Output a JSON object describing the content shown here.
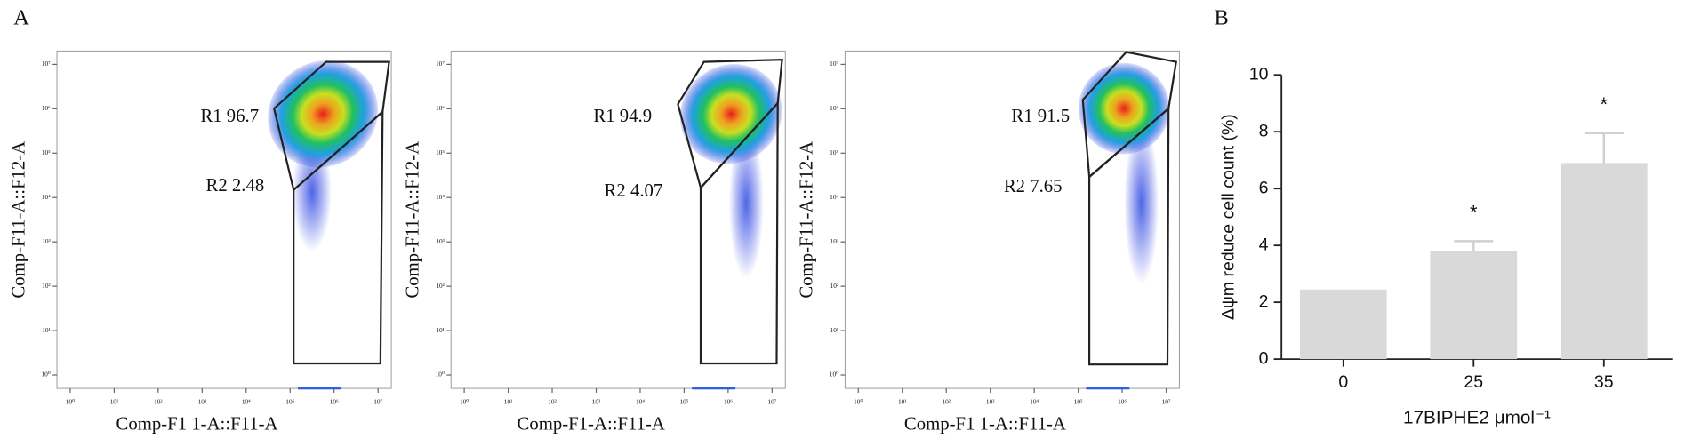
{
  "panel_labels": [
    "A",
    "B"
  ],
  "chart_data": [
    {
      "type": "density",
      "xlabel": "Comp-F1 1-A::F11-A",
      "ylabel": "Comp-F11-A::F12-A",
      "log_scale": true,
      "xlim": [
        0.5,
        20000000
      ],
      "ylim": [
        0.5,
        20000000
      ],
      "xticks": [
        {
          "value": 1,
          "label": "10⁰"
        },
        {
          "value": 10,
          "label": "10¹"
        },
        {
          "value": 100,
          "label": "10²"
        },
        {
          "value": 1000,
          "label": "10³"
        },
        {
          "value": 10000,
          "label": "10⁴"
        },
        {
          "value": 100000,
          "label": "10⁵"
        },
        {
          "value": 1000000,
          "label": "10⁶"
        },
        {
          "value": 10000000,
          "label": "10⁷"
        }
      ],
      "yticks": [
        {
          "value": 1,
          "label": "10⁰"
        },
        {
          "value": 10,
          "label": "10¹"
        },
        {
          "value": 100,
          "label": "10²"
        },
        {
          "value": 1000,
          "label": "10³"
        },
        {
          "value": 10000,
          "label": "10⁴"
        },
        {
          "value": 100000,
          "label": "10⁵"
        },
        {
          "value": 1000000,
          "label": "10⁶"
        },
        {
          "value": 10000000,
          "label": "10⁷"
        }
      ],
      "gates": [
        {
          "name": "R1",
          "value": 96.7
        },
        {
          "name": "R2",
          "value": 2.48
        }
      ]
    },
    {
      "type": "density",
      "xlabel": "Comp-F1-A::F11-A",
      "ylabel": "Comp-F11-A::F12-A",
      "log_scale": true,
      "xlim": [
        0.5,
        20000000
      ],
      "ylim": [
        0.5,
        20000000
      ],
      "xticks": [
        {
          "value": 1,
          "label": "10⁰"
        },
        {
          "value": 10,
          "label": "10¹"
        },
        {
          "value": 100,
          "label": "10²"
        },
        {
          "value": 1000,
          "label": "10³"
        },
        {
          "value": 10000,
          "label": "10⁴"
        },
        {
          "value": 100000,
          "label": "10⁵"
        },
        {
          "value": 1000000,
          "label": "10⁶"
        },
        {
          "value": 10000000,
          "label": "10⁷"
        }
      ],
      "yticks": [
        {
          "value": 1,
          "label": "10⁰"
        },
        {
          "value": 10,
          "label": "10¹"
        },
        {
          "value": 100,
          "label": "10²"
        },
        {
          "value": 1000,
          "label": "10³"
        },
        {
          "value": 10000,
          "label": "10⁴"
        },
        {
          "value": 100000,
          "label": "10⁵"
        },
        {
          "value": 1000000,
          "label": "10⁶"
        },
        {
          "value": 10000000,
          "label": "10⁷"
        }
      ],
      "gates": [
        {
          "name": "R1",
          "value": 94.9
        },
        {
          "name": "R2",
          "value": 4.07
        }
      ]
    },
    {
      "type": "density",
      "xlabel": "Comp-F1 1-A::F11-A",
      "ylabel": "Comp-F11-A::F12-A",
      "log_scale": true,
      "xlim": [
        0.5,
        20000000
      ],
      "ylim": [
        0.5,
        20000000
      ],
      "xticks": [
        {
          "value": 1,
          "label": "10⁰"
        },
        {
          "value": 10,
          "label": "10¹"
        },
        {
          "value": 100,
          "label": "10²"
        },
        {
          "value": 1000,
          "label": "10³"
        },
        {
          "value": 10000,
          "label": "10⁴"
        },
        {
          "value": 100000,
          "label": "10⁵"
        },
        {
          "value": 1000000,
          "label": "10⁶"
        },
        {
          "value": 10000000,
          "label": "10⁷"
        }
      ],
      "yticks": [
        {
          "value": 1,
          "label": "10⁰"
        },
        {
          "value": 10,
          "label": "10¹"
        },
        {
          "value": 100,
          "label": "10²"
        },
        {
          "value": 1000,
          "label": "10³"
        },
        {
          "value": 10000,
          "label": "10⁴"
        },
        {
          "value": 100000,
          "label": "10⁵"
        },
        {
          "value": 1000000,
          "label": "10⁶"
        },
        {
          "value": 10000000,
          "label": "10⁷"
        }
      ],
      "gates": [
        {
          "name": "R1",
          "value": 91.5
        },
        {
          "name": "R2",
          "value": 7.65
        }
      ]
    },
    {
      "type": "bar",
      "xlabel": "17BIPHE2 μmol⁻¹",
      "ylabel": "Δψm reduce cell count (%)",
      "categories": [
        "0",
        "25",
        "35"
      ],
      "values": [
        2.45,
        3.8,
        6.9
      ],
      "errors": [
        null,
        0.35,
        1.05
      ],
      "annotations": [
        null,
        "*",
        "*"
      ],
      "color": "#d9d9d9",
      "ylim": [
        0,
        10
      ],
      "yticks": [
        0,
        2,
        4,
        6,
        8,
        10
      ]
    }
  ]
}
